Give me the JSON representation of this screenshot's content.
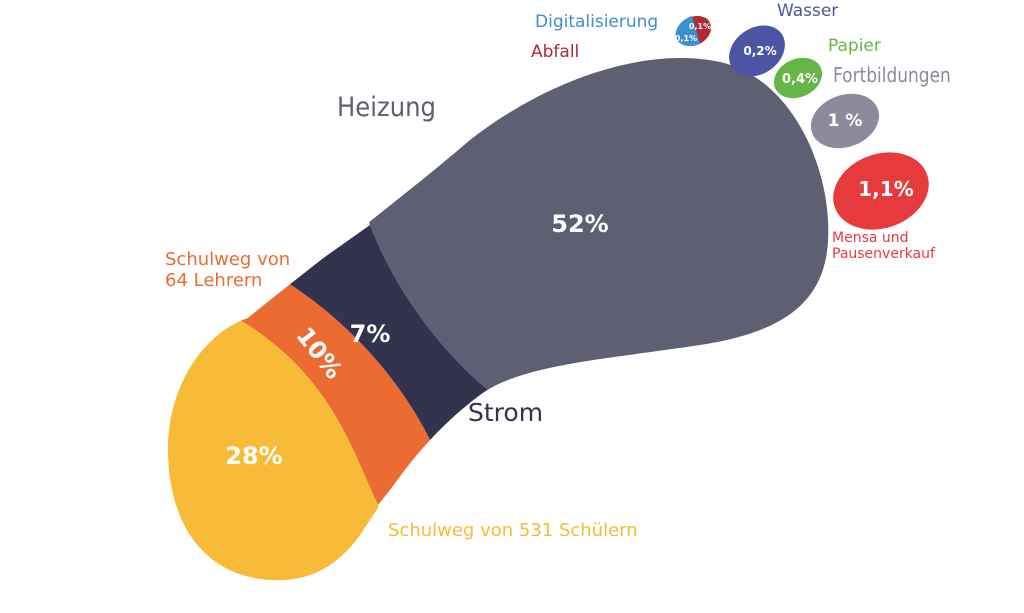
{
  "chart_data": {
    "type": "pie",
    "title": "",
    "colors": {
      "heizung": "#5f5f74",
      "strom": "#33334f",
      "lehrer": "#ec6b33",
      "schueler": "#f7bb38",
      "mensa": "#e73a3c",
      "fortbildungen": "#8b8b9b",
      "papier": "#65b646",
      "wasser": "#4b55a3",
      "abfall": "#b02a35",
      "digitalisierung": "#3d8fcf"
    },
    "segments": [
      {
        "key": "heizung",
        "label": "Heizung",
        "value_label": "52%",
        "value": 52
      },
      {
        "key": "schueler",
        "label": "Schulweg von 531 Schülern",
        "value_label": "28%",
        "value": 28
      },
      {
        "key": "lehrer",
        "label": "Schulweg von\n64 Lehrern",
        "value_label": "10%",
        "value": 10
      },
      {
        "key": "strom",
        "label": "Strom",
        "value_label": "7%",
        "value": 7
      },
      {
        "key": "mensa",
        "label": "Mensa und\nPausenverkauf",
        "value_label": "1,1%",
        "value": 1.1
      },
      {
        "key": "fortbildungen",
        "label": "Fortbildungen",
        "value_label": "1 %",
        "value": 1
      },
      {
        "key": "papier",
        "label": "Papier",
        "value_label": "0,4%",
        "value": 0.4
      },
      {
        "key": "wasser",
        "label": "Wasser",
        "value_label": "0,2%",
        "value": 0.2
      },
      {
        "key": "abfall",
        "label": "Abfall",
        "value_label": "0,1%",
        "value": 0.1
      },
      {
        "key": "digitalisierung",
        "label": "Digitalisierung",
        "value_label": "0,1%",
        "value": 0.1
      }
    ]
  }
}
